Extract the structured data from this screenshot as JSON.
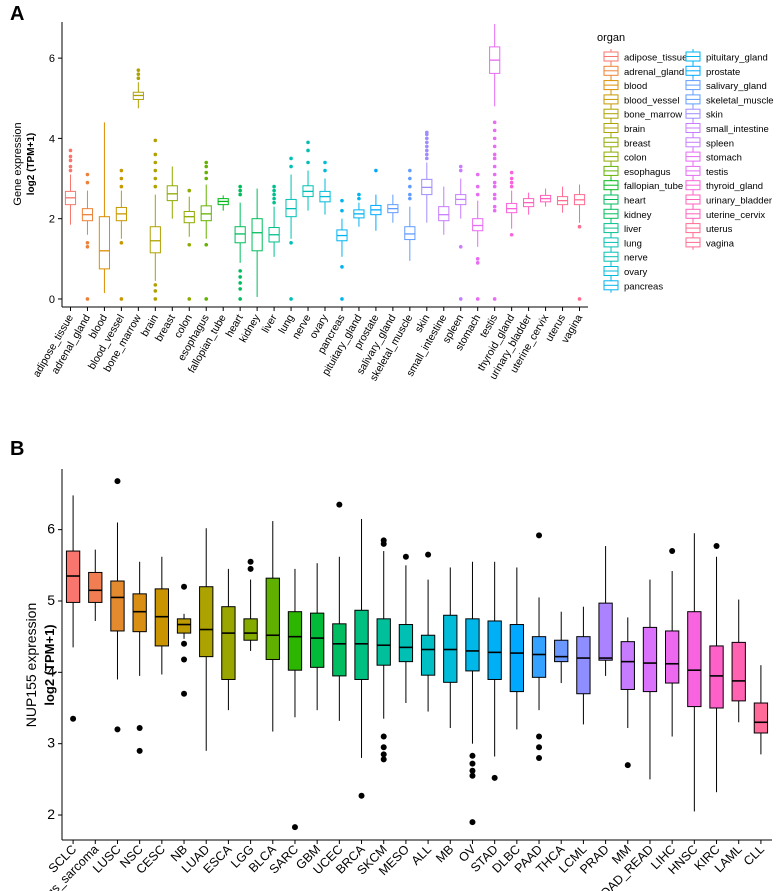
{
  "chart_data": [
    {
      "panel_label": "A",
      "type": "box",
      "ylabel_line1": "Gene expression",
      "ylabel_line2": "log2 (TPM+1)",
      "ylim": [
        -0.2,
        6.9
      ],
      "yticks": [
        "0",
        "2",
        "4",
        "6"
      ],
      "legend_title": "organ",
      "boxes": [
        {
          "name": "adipose_tissue",
          "color": "#F8766D",
          "q1": 2.35,
          "median": 2.52,
          "q3": 2.68,
          "wlo": 1.85,
          "whi": 3.1,
          "outliers": [
            3.2,
            3.3,
            3.45,
            3.55,
            3.7
          ]
        },
        {
          "name": "adrenal_gland",
          "color": "#EC8239",
          "q1": 1.95,
          "median": 2.1,
          "q3": 2.25,
          "wlo": 1.6,
          "whi": 2.7,
          "outliers": [
            0,
            1.3,
            1.4,
            2.9,
            3.1
          ]
        },
        {
          "name": "blood",
          "color": "#DB8E00",
          "q1": 0.75,
          "median": 1.2,
          "q3": 2.05,
          "wlo": 0.15,
          "whi": 4.4,
          "outliers": []
        },
        {
          "name": "blood_vessel",
          "color": "#C79800",
          "q1": 1.95,
          "median": 2.12,
          "q3": 2.28,
          "wlo": 1.5,
          "whi": 2.7,
          "outliers": [
            0,
            1.4,
            2.8,
            3.0,
            3.2
          ]
        },
        {
          "name": "bone_marrow",
          "color": "#AEA200",
          "q1": 4.97,
          "median": 5.07,
          "q3": 5.15,
          "wlo": 4.75,
          "whi": 5.4,
          "outliers": [
            5.5,
            5.6,
            5.7
          ]
        },
        {
          "name": "brain",
          "color": "#AEA200",
          "q1": 1.15,
          "median": 1.45,
          "q3": 1.8,
          "wlo": 0.45,
          "whi": 2.6,
          "outliers": [
            0,
            0.2,
            0.35,
            2.8,
            3.0,
            3.2,
            3.4,
            3.6,
            3.95
          ]
        },
        {
          "name": "breast",
          "color": "#8FAA00",
          "q1": 2.45,
          "median": 2.62,
          "q3": 2.82,
          "wlo": 2.0,
          "whi": 3.3,
          "outliers": []
        },
        {
          "name": "colon",
          "color": "#8FAA00",
          "q1": 1.9,
          "median": 2.05,
          "q3": 2.18,
          "wlo": 1.55,
          "whi": 2.55,
          "outliers": [
            0,
            1.35,
            2.7
          ]
        },
        {
          "name": "esophagus",
          "color": "#64B200",
          "q1": 1.95,
          "median": 2.12,
          "q3": 2.32,
          "wlo": 1.5,
          "whi": 2.85,
          "outliers": [
            0,
            1.35,
            3.0,
            3.15,
            3.3,
            3.4
          ]
        },
        {
          "name": "fallopian_tube",
          "color": "#00B81B",
          "q1": 2.35,
          "median": 2.43,
          "q3": 2.5,
          "wlo": 2.2,
          "whi": 2.58,
          "outliers": []
        },
        {
          "name": "heart",
          "color": "#00BD5C",
          "q1": 1.4,
          "median": 1.62,
          "q3": 1.8,
          "wlo": 0.9,
          "whi": 2.4,
          "outliers": [
            0,
            0.25,
            0.4,
            0.55,
            0.7,
            2.6,
            2.7,
            2.8
          ]
        },
        {
          "name": "kidney",
          "color": "#00BD5C",
          "q1": 1.2,
          "median": 1.65,
          "q3": 2.0,
          "wlo": 0.05,
          "whi": 2.75,
          "outliers": []
        },
        {
          "name": "liver",
          "color": "#00C08D",
          "q1": 1.42,
          "median": 1.6,
          "q3": 1.78,
          "wlo": 1.05,
          "whi": 2.3,
          "outliers": [
            2.4,
            2.5,
            2.6,
            2.7,
            2.8
          ]
        },
        {
          "name": "lung",
          "color": "#00C0B5",
          "q1": 2.05,
          "median": 2.25,
          "q3": 2.48,
          "wlo": 1.5,
          "whi": 3.1,
          "outliers": [
            0,
            1.4,
            3.3,
            3.5
          ]
        },
        {
          "name": "nerve",
          "color": "#00C0B5",
          "q1": 2.55,
          "median": 2.68,
          "q3": 2.82,
          "wlo": 2.2,
          "whi": 3.2,
          "outliers": [
            3.4,
            3.7,
            3.9
          ]
        },
        {
          "name": "ovary",
          "color": "#00BCD8",
          "q1": 2.42,
          "median": 2.55,
          "q3": 2.68,
          "wlo": 2.1,
          "whi": 3.0,
          "outliers": [
            3.2,
            3.4
          ]
        },
        {
          "name": "pancreas",
          "color": "#00B4EF",
          "q1": 1.45,
          "median": 1.58,
          "q3": 1.72,
          "wlo": 1.05,
          "whi": 2.0,
          "outliers": [
            0,
            0.8,
            2.2,
            2.45
          ]
        },
        {
          "name": "pituitary_gland",
          "color": "#00B4EF",
          "q1": 2.02,
          "median": 2.12,
          "q3": 2.22,
          "wlo": 1.8,
          "whi": 2.4,
          "outliers": [
            2.5,
            2.6
          ]
        },
        {
          "name": "prostate",
          "color": "#00A9FF",
          "q1": 2.1,
          "median": 2.22,
          "q3": 2.33,
          "wlo": 1.7,
          "whi": 2.6,
          "outliers": [
            3.2
          ]
        },
        {
          "name": "salivary_gland",
          "color": "#619CFF",
          "q1": 2.15,
          "median": 2.25,
          "q3": 2.35,
          "wlo": 1.9,
          "whi": 2.6,
          "outliers": []
        },
        {
          "name": "skeletal_muscle",
          "color": "#619CFF",
          "q1": 1.48,
          "median": 1.62,
          "q3": 1.8,
          "wlo": 0.95,
          "whi": 2.3,
          "outliers": [
            2.5,
            2.6,
            2.8,
            3.0,
            3.2
          ]
        },
        {
          "name": "skin",
          "color": "#9F8CFF",
          "q1": 2.6,
          "median": 2.78,
          "q3": 2.98,
          "wlo": 1.9,
          "whi": 3.4,
          "outliers": [
            3.5,
            3.6,
            3.7,
            3.8,
            3.9,
            4.0,
            4.1,
            4.15
          ]
        },
        {
          "name": "small_intestine",
          "color": "#C77CFF",
          "q1": 1.95,
          "median": 2.1,
          "q3": 2.3,
          "wlo": 1.6,
          "whi": 2.8,
          "outliers": []
        },
        {
          "name": "spleen",
          "color": "#C77CFF",
          "q1": 2.35,
          "median": 2.48,
          "q3": 2.6,
          "wlo": 2.0,
          "whi": 3.0,
          "outliers": [
            0,
            1.3,
            3.2,
            3.3
          ]
        },
        {
          "name": "stomach",
          "color": "#E76BF3",
          "q1": 1.7,
          "median": 1.83,
          "q3": 2.0,
          "wlo": 1.3,
          "whi": 2.45,
          "outliers": [
            0,
            0.9,
            1.0,
            2.6,
            2.8,
            3.1
          ]
        },
        {
          "name": "testis",
          "color": "#E76BF3",
          "q1": 5.62,
          "median": 5.95,
          "q3": 6.28,
          "wlo": 4.8,
          "whi": 6.85,
          "outliers": [
            0,
            2.2,
            2.3,
            2.5,
            2.6,
            2.8,
            2.9,
            3.1,
            3.3,
            3.5,
            3.6,
            3.8,
            4.0,
            4.2,
            4.4
          ]
        },
        {
          "name": "thyroid_gland",
          "color": "#FA62DB",
          "q1": 2.15,
          "median": 2.25,
          "q3": 2.38,
          "wlo": 1.75,
          "whi": 2.7,
          "outliers": [
            1.6,
            2.8,
            2.9,
            3.0,
            3.15
          ]
        },
        {
          "name": "urinary_bladder",
          "color": "#FF62BC",
          "q1": 2.3,
          "median": 2.4,
          "q3": 2.5,
          "wlo": 2.1,
          "whi": 2.65,
          "outliers": []
        },
        {
          "name": "uterine_cervix",
          "color": "#FF62BC",
          "q1": 2.42,
          "median": 2.5,
          "q3": 2.58,
          "wlo": 2.3,
          "whi": 2.75,
          "outliers": []
        },
        {
          "name": "uterus",
          "color": "#FF6C91",
          "q1": 2.35,
          "median": 2.45,
          "q3": 2.55,
          "wlo": 2.15,
          "whi": 2.8,
          "outliers": []
        },
        {
          "name": "vagina",
          "color": "#FF6C91",
          "q1": 2.35,
          "median": 2.47,
          "q3": 2.6,
          "wlo": 1.9,
          "whi": 2.85,
          "outliers": [
            0,
            1.8
          ]
        }
      ]
    },
    {
      "panel_label": "B",
      "type": "box",
      "ylabel_line1": "NUP155 expression",
      "ylabel_line2": "log2 (TPM+1)",
      "ylim": [
        1.65,
        6.85
      ],
      "yticks": [
        "2",
        "3",
        "4",
        "5",
        "6"
      ],
      "boxes": [
        {
          "name": "SCLC",
          "color": "#F8766D",
          "q1": 4.98,
          "median": 5.35,
          "q3": 5.7,
          "wlo": 4.35,
          "whi": 6.48,
          "outliers": [
            3.35
          ]
        },
        {
          "name": "Ewings_sarcoma",
          "color": "#F07E52",
          "q1": 4.98,
          "median": 5.15,
          "q3": 5.4,
          "wlo": 4.72,
          "whi": 5.72,
          "outliers": []
        },
        {
          "name": "LUSC",
          "color": "#E48A2E",
          "q1": 4.58,
          "median": 5.05,
          "q3": 5.28,
          "wlo": 3.9,
          "whi": 6.1,
          "outliers": [
            3.2,
            6.68
          ]
        },
        {
          "name": "NSC",
          "color": "#D98F14",
          "q1": 4.57,
          "median": 4.85,
          "q3": 5.1,
          "wlo": 3.95,
          "whi": 5.55,
          "outliers": [
            3.22,
            2.9
          ]
        },
        {
          "name": "CESC",
          "color": "#C99400",
          "q1": 4.37,
          "median": 4.78,
          "q3": 5.17,
          "wlo": 3.97,
          "whi": 5.62,
          "outliers": []
        },
        {
          "name": "NB",
          "color": "#BC9C00",
          "q1": 4.55,
          "median": 4.67,
          "q3": 4.75,
          "wlo": 4.47,
          "whi": 4.82,
          "outliers": [
            5.2,
            4.4,
            4.18,
            3.7
          ]
        },
        {
          "name": "LUAD",
          "color": "#ACA200",
          "q1": 4.22,
          "median": 4.6,
          "q3": 5.2,
          "wlo": 2.9,
          "whi": 6.02,
          "outliers": []
        },
        {
          "name": "ESCA",
          "color": "#9AA600",
          "q1": 3.9,
          "median": 4.55,
          "q3": 4.92,
          "wlo": 3.47,
          "whi": 5.45,
          "outliers": []
        },
        {
          "name": "LGG",
          "color": "#85AA00",
          "q1": 4.45,
          "median": 4.55,
          "q3": 4.75,
          "wlo": 4.3,
          "whi": 5.3,
          "outliers": [
            5.45,
            5.55
          ]
        },
        {
          "name": "BLCA",
          "color": "#60B000",
          "q1": 4.18,
          "median": 4.52,
          "q3": 5.32,
          "wlo": 3.17,
          "whi": 6.12,
          "outliers": []
        },
        {
          "name": "SARC",
          "color": "#2DB600",
          "q1": 4.03,
          "median": 4.5,
          "q3": 4.85,
          "wlo": 3.37,
          "whi": 5.45,
          "outliers": [
            1.83
          ]
        },
        {
          "name": "GBM",
          "color": "#00BA38",
          "q1": 4.07,
          "median": 4.48,
          "q3": 4.83,
          "wlo": 3.47,
          "whi": 5.53,
          "outliers": []
        },
        {
          "name": "UCEC",
          "color": "#00BD62",
          "q1": 3.95,
          "median": 4.4,
          "q3": 4.68,
          "wlo": 3.32,
          "whi": 5.62,
          "outliers": [
            6.35
          ]
        },
        {
          "name": "BRCA",
          "color": "#00BF80",
          "q1": 3.9,
          "median": 4.4,
          "q3": 4.87,
          "wlo": 2.8,
          "whi": 6.15,
          "outliers": [
            2.27
          ]
        },
        {
          "name": "SKCM",
          "color": "#00C09C",
          "q1": 4.1,
          "median": 4.38,
          "q3": 4.75,
          "wlo": 3.35,
          "whi": 5.7,
          "outliers": [
            5.8,
            5.85,
            3.1,
            2.95,
            2.85,
            2.78
          ]
        },
        {
          "name": "MESO",
          "color": "#00C0B4",
          "q1": 4.15,
          "median": 4.35,
          "q3": 4.67,
          "wlo": 3.57,
          "whi": 5.5,
          "outliers": [
            5.62
          ]
        },
        {
          "name": "ALL",
          "color": "#00BFC4",
          "q1": 3.96,
          "median": 4.32,
          "q3": 4.52,
          "wlo": 3.45,
          "whi": 5.3,
          "outliers": [
            5.65
          ]
        },
        {
          "name": "MB",
          "color": "#00BCD8",
          "q1": 3.86,
          "median": 4.32,
          "q3": 4.8,
          "wlo": 3.22,
          "whi": 5.47,
          "outliers": []
        },
        {
          "name": "OV",
          "color": "#00B7E9",
          "q1": 4.02,
          "median": 4.3,
          "q3": 4.75,
          "wlo": 3.0,
          "whi": 5.55,
          "outliers": [
            2.83,
            2.72,
            2.62,
            2.55,
            1.9
          ]
        },
        {
          "name": "STAD",
          "color": "#00B0F6",
          "q1": 3.9,
          "median": 4.28,
          "q3": 4.72,
          "wlo": 2.82,
          "whi": 5.55,
          "outliers": [
            2.52
          ]
        },
        {
          "name": "DLBC",
          "color": "#00A9FF",
          "q1": 3.73,
          "median": 4.27,
          "q3": 4.67,
          "wlo": 3.2,
          "whi": 5.47,
          "outliers": []
        },
        {
          "name": "PAAD",
          "color": "#35A2FF",
          "q1": 3.93,
          "median": 4.25,
          "q3": 4.5,
          "wlo": 3.47,
          "whi": 5.05,
          "outliers": [
            5.92,
            3.1,
            2.95,
            2.8
          ]
        },
        {
          "name": "THCA",
          "color": "#6A98FF",
          "q1": 4.15,
          "median": 4.22,
          "q3": 4.45,
          "wlo": 3.85,
          "whi": 4.85,
          "outliers": []
        },
        {
          "name": "LCML",
          "color": "#8F8EFF",
          "q1": 3.7,
          "median": 4.2,
          "q3": 4.5,
          "wlo": 3.27,
          "whi": 4.92,
          "outliers": []
        },
        {
          "name": "PRAD",
          "color": "#AB82FF",
          "q1": 4.17,
          "median": 4.2,
          "q3": 4.97,
          "wlo": 3.95,
          "whi": 5.77,
          "outliers": []
        },
        {
          "name": "MM",
          "color": "#C77CFF",
          "q1": 3.76,
          "median": 4.15,
          "q3": 4.43,
          "wlo": 3.22,
          "whi": 4.77,
          "outliers": [
            2.7
          ]
        },
        {
          "name": "COAD_READ",
          "color": "#DB72FB",
          "q1": 3.73,
          "median": 4.13,
          "q3": 4.63,
          "wlo": 2.5,
          "whi": 5.3,
          "outliers": []
        },
        {
          "name": "LIHC",
          "color": "#EC69EF",
          "q1": 3.85,
          "median": 4.12,
          "q3": 4.58,
          "wlo": 3.1,
          "whi": 5.42,
          "outliers": [
            5.7
          ]
        },
        {
          "name": "HNSC",
          "color": "#F863DF",
          "q1": 3.52,
          "median": 4.03,
          "q3": 4.85,
          "wlo": 2.05,
          "whi": 5.95,
          "outliers": []
        },
        {
          "name": "KIRC",
          "color": "#FF61C9",
          "q1": 3.5,
          "median": 3.95,
          "q3": 4.37,
          "wlo": 2.32,
          "whi": 5.62,
          "outliers": [
            5.77
          ]
        },
        {
          "name": "LAML",
          "color": "#FF62B0",
          "q1": 3.6,
          "median": 3.88,
          "q3": 4.42,
          "wlo": 3.3,
          "whi": 5.02,
          "outliers": []
        },
        {
          "name": "CLL",
          "color": "#FF6A98",
          "q1": 3.15,
          "median": 3.3,
          "q3": 3.57,
          "wlo": 2.85,
          "whi": 4.1,
          "outliers": []
        }
      ]
    }
  ]
}
